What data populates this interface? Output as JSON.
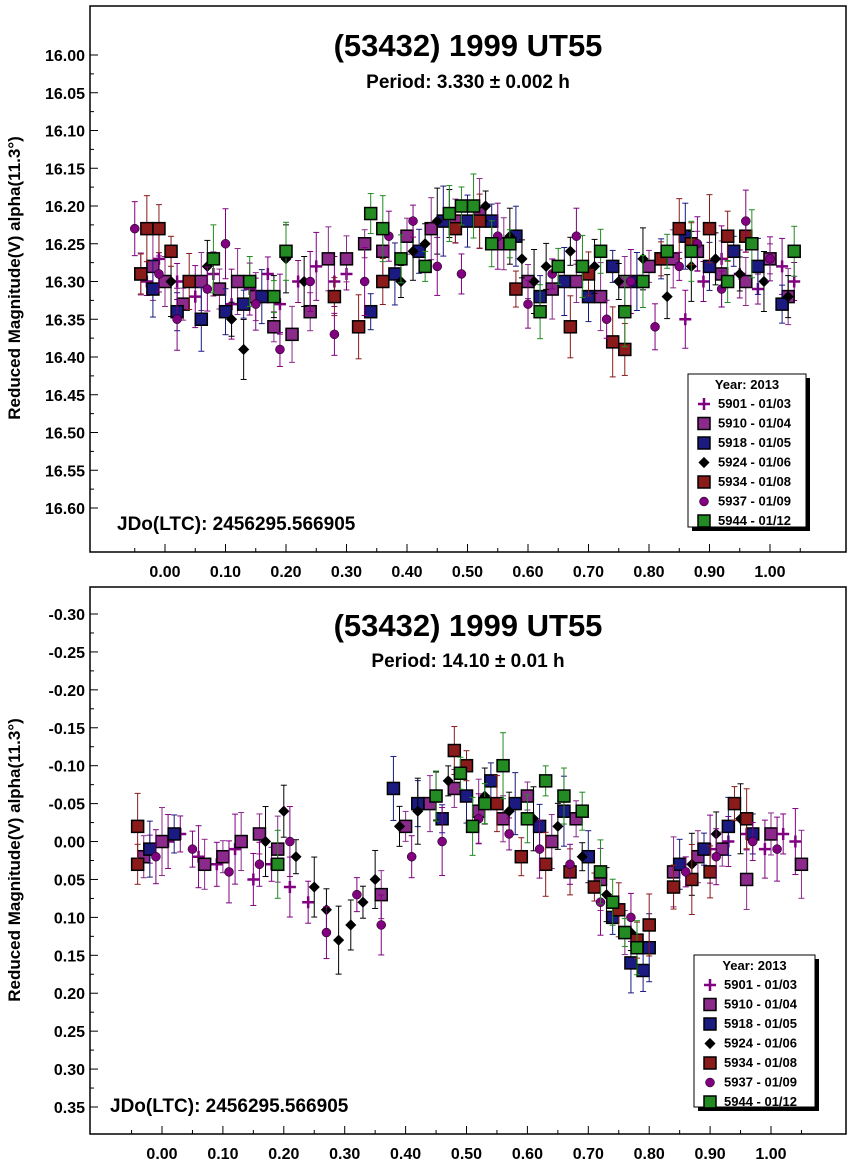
{
  "chart_data": [
    {
      "type": "scatter",
      "title": "(53432) 1999 UT55",
      "subtitle": "Period: 3.330 ± 0.002 h",
      "ylabel": "Reduced Magnitude(V) alpha(11.3°)",
      "xlabel": "",
      "annotation": "JDo(LTC): 2456295.566905",
      "xlim": [
        -0.06,
        1.06
      ],
      "ylim": [
        16.0,
        16.6
      ],
      "y_inverted": true,
      "x_ticks": [
        "0.00",
        "0.10",
        "0.20",
        "0.30",
        "0.40",
        "0.50",
        "0.60",
        "0.70",
        "0.80",
        "0.90",
        "1.00"
      ],
      "y_ticks": [
        "16.00",
        "16.05",
        "16.10",
        "16.15",
        "16.20",
        "16.25",
        "16.30",
        "16.35",
        "16.40",
        "16.45",
        "16.50",
        "16.55",
        "16.60"
      ],
      "legend_title": "Year: 2013",
      "legend_position": "bottom-right",
      "series": [
        {
          "name": "5901 - 01/03",
          "marker": "plus",
          "color": "#800080",
          "x": [
            -0.03,
            -0.01,
            0.02,
            0.05,
            0.08,
            0.11,
            0.14,
            0.17,
            0.19,
            0.22,
            0.25,
            0.28,
            0.3,
            0.86,
            0.89,
            0.92,
            0.95,
            0.98,
            1.02,
            1.04
          ],
          "y": [
            16.3,
            16.27,
            16.3,
            16.32,
            16.29,
            16.33,
            16.31,
            16.29,
            16.33,
            16.3,
            16.28,
            16.3,
            16.29,
            16.35,
            16.3,
            16.27,
            16.29,
            16.31,
            16.28,
            16.3
          ]
        },
        {
          "name": "5910 - 01/04",
          "marker": "square",
          "color": "#8b2a8b",
          "x": [
            -0.04,
            -0.02,
            0.0,
            0.03,
            0.06,
            0.09,
            0.12,
            0.15,
            0.18,
            0.21,
            0.24,
            0.27,
            0.3,
            0.33,
            0.36,
            0.4,
            0.44,
            0.48,
            0.52,
            0.56,
            0.6,
            0.64,
            0.68,
            0.72,
            0.76,
            0.8,
            0.84,
            0.88,
            0.92,
            0.96,
            1.0,
            1.03
          ],
          "y": [
            16.29,
            16.28,
            16.3,
            16.33,
            16.3,
            16.31,
            16.3,
            16.32,
            16.36,
            16.37,
            16.34,
            16.27,
            16.27,
            16.25,
            16.26,
            16.24,
            16.23,
            16.22,
            16.21,
            16.25,
            16.3,
            16.31,
            16.3,
            16.32,
            16.3,
            16.28,
            16.27,
            16.26,
            16.29,
            16.3,
            16.27,
            16.32
          ]
        },
        {
          "name": "5918 - 01/05",
          "marker": "square",
          "color": "#1a1a80",
          "x": [
            -0.02,
            0.02,
            0.06,
            0.1,
            0.13,
            0.16,
            0.34,
            0.38,
            0.42,
            0.46,
            0.5,
            0.54,
            0.58,
            0.62,
            0.66,
            0.7,
            0.74,
            0.78,
            0.82,
            0.86,
            0.9,
            0.94,
            0.98,
            1.02
          ],
          "y": [
            16.31,
            16.34,
            16.35,
            16.34,
            16.33,
            16.32,
            16.34,
            16.29,
            16.26,
            16.22,
            16.22,
            16.22,
            16.24,
            16.32,
            16.3,
            16.32,
            16.28,
            16.3,
            16.27,
            16.24,
            16.28,
            16.26,
            16.28,
            16.33
          ]
        },
        {
          "name": "5924 - 01/06",
          "marker": "diamond",
          "color": "#000000",
          "x": [
            0.01,
            0.07,
            0.11,
            0.13,
            0.18,
            0.2,
            0.23,
            0.39,
            0.41,
            0.43,
            0.45,
            0.47,
            0.53,
            0.57,
            0.59,
            0.61,
            0.63,
            0.67,
            0.71,
            0.75,
            0.79,
            0.83,
            0.87,
            0.91,
            0.95,
            0.99,
            1.03
          ],
          "y": [
            16.3,
            16.28,
            16.35,
            16.39,
            16.32,
            16.27,
            16.3,
            16.3,
            16.26,
            16.25,
            16.22,
            16.21,
            16.2,
            16.24,
            16.27,
            16.3,
            16.28,
            16.26,
            16.28,
            16.3,
            16.27,
            16.32,
            16.28,
            16.27,
            16.29,
            16.3,
            16.32
          ]
        },
        {
          "name": "5934 - 01/08",
          "marker": "square",
          "color": "#8b1a1a",
          "x": [
            -0.04,
            -0.03,
            -0.01,
            0.01,
            0.04,
            0.28,
            0.32,
            0.36,
            0.48,
            0.52,
            0.58,
            0.67,
            0.7,
            0.74,
            0.76,
            0.82,
            0.85,
            0.87,
            0.9,
            0.93,
            0.96
          ],
          "y": [
            16.29,
            16.23,
            16.23,
            16.26,
            16.3,
            16.32,
            16.36,
            16.3,
            16.23,
            16.22,
            16.31,
            16.36,
            16.29,
            16.38,
            16.39,
            16.27,
            16.23,
            16.25,
            16.23,
            16.24,
            16.24
          ]
        },
        {
          "name": "5937 - 01/09",
          "marker": "circle",
          "color": "#800080",
          "x": [
            -0.05,
            -0.01,
            0.02,
            0.07,
            0.1,
            0.15,
            0.19,
            0.24,
            0.28,
            0.33,
            0.37,
            0.41,
            0.45,
            0.49,
            0.55,
            0.6,
            0.64,
            0.68,
            0.73,
            0.77,
            0.81,
            0.85,
            0.88,
            0.92,
            0.96,
            1.0
          ],
          "y": [
            16.23,
            16.29,
            16.35,
            16.31,
            16.25,
            16.33,
            16.39,
            16.3,
            16.37,
            16.3,
            16.24,
            16.22,
            16.28,
            16.29,
            16.24,
            16.33,
            16.29,
            16.24,
            16.35,
            16.3,
            16.36,
            16.28,
            16.25,
            16.31,
            16.22,
            16.27
          ]
        },
        {
          "name": "5944 - 01/12",
          "marker": "square",
          "color": "#228b22",
          "x": [
            0.08,
            0.14,
            0.18,
            0.2,
            0.34,
            0.36,
            0.39,
            0.43,
            0.47,
            0.49,
            0.51,
            0.54,
            0.57,
            0.62,
            0.65,
            0.69,
            0.72,
            0.76,
            0.79,
            0.83,
            0.87,
            0.93,
            0.97,
            1.04
          ],
          "y": [
            16.27,
            16.3,
            16.32,
            16.26,
            16.21,
            16.23,
            16.27,
            16.28,
            16.21,
            16.2,
            16.2,
            16.25,
            16.25,
            16.34,
            16.28,
            16.28,
            16.26,
            16.34,
            16.3,
            16.26,
            16.26,
            16.3,
            16.25,
            16.26
          ]
        }
      ]
    },
    {
      "type": "scatter",
      "title": "(53432) 1999 UT55",
      "subtitle": "Period: 14.10 ± 0.01 h",
      "ylabel": "Reduced Magnitude(V) alpha(11.3°)",
      "xlabel": "",
      "annotation": "JDo(LTC): 2456295.566905",
      "xlim": [
        -0.06,
        1.06
      ],
      "ylim": [
        -0.3,
        0.35
      ],
      "y_inverted": true,
      "x_ticks": [
        "0.00",
        "0.10",
        "0.20",
        "0.30",
        "0.40",
        "0.50",
        "0.60",
        "0.70",
        "0.80",
        "0.90",
        "1.00"
      ],
      "y_ticks": [
        "-0.30",
        "-0.25",
        "-0.20",
        "-0.15",
        "-0.10",
        "-0.05",
        "0.00",
        "0.05",
        "0.10",
        "0.15",
        "0.20",
        "0.25",
        "0.30",
        "0.35"
      ],
      "legend_title": "Year: 2013",
      "legend_position": "bottom-right",
      "series": [
        {
          "name": "5901 - 01/03",
          "marker": "plus",
          "color": "#800080",
          "x": [
            -0.02,
            0.01,
            0.03,
            0.06,
            0.09,
            0.12,
            0.15,
            0.18,
            0.21,
            0.24,
            0.9,
            0.93,
            0.96,
            0.99,
            1.02,
            1.04
          ],
          "y": [
            0.01,
            0.0,
            -0.01,
            0.02,
            0.03,
            0.01,
            0.05,
            0.03,
            0.06,
            0.08,
            0.01,
            0.0,
            -0.01,
            0.01,
            -0.01,
            0.0
          ]
        },
        {
          "name": "5910 - 01/04",
          "marker": "square",
          "color": "#8b2a8b",
          "x": [
            -0.03,
            0.0,
            0.07,
            0.1,
            0.13,
            0.16,
            0.19,
            0.36,
            0.4,
            0.44,
            0.48,
            0.52,
            0.56,
            0.6,
            0.64,
            0.68,
            0.72,
            0.76,
            0.84,
            0.88,
            0.92,
            0.96,
            1.0,
            1.05
          ],
          "y": [
            0.02,
            0.0,
            0.03,
            0.02,
            0.0,
            -0.01,
            0.01,
            0.07,
            -0.02,
            -0.05,
            -0.07,
            -0.04,
            -0.03,
            -0.06,
            0.0,
            -0.03,
            0.05,
            0.12,
            0.04,
            0.02,
            0.01,
            0.05,
            -0.01,
            0.03
          ]
        },
        {
          "name": "5918 - 01/05",
          "marker": "square",
          "color": "#1a1a80",
          "x": [
            -0.02,
            0.02,
            0.38,
            0.42,
            0.46,
            0.5,
            0.54,
            0.58,
            0.62,
            0.66,
            0.7,
            0.74,
            0.77,
            0.79,
            0.8,
            0.85,
            0.89,
            0.93,
            0.97
          ],
          "y": [
            0.01,
            -0.01,
            -0.07,
            -0.05,
            -0.03,
            -0.06,
            -0.08,
            -0.05,
            -0.02,
            -0.04,
            0.02,
            0.1,
            0.16,
            0.17,
            0.14,
            0.03,
            0.01,
            -0.02,
            -0.01
          ]
        },
        {
          "name": "5924 - 01/06",
          "marker": "diamond",
          "color": "#000000",
          "x": [
            0.17,
            0.2,
            0.22,
            0.25,
            0.27,
            0.29,
            0.31,
            0.33,
            0.35,
            0.39,
            0.42,
            0.45,
            0.47,
            0.53,
            0.57,
            0.61,
            0.65,
            0.69,
            0.73,
            0.77,
            0.87,
            0.91,
            0.95
          ],
          "y": [
            0.0,
            -0.04,
            0.02,
            0.06,
            0.09,
            0.13,
            0.11,
            0.08,
            0.05,
            -0.02,
            -0.04,
            -0.06,
            -0.08,
            -0.06,
            -0.04,
            -0.03,
            -0.02,
            0.02,
            0.07,
            0.12,
            0.03,
            -0.01,
            -0.03
          ]
        },
        {
          "name": "5934 - 01/08",
          "marker": "square",
          "color": "#8b1a1a",
          "x": [
            -0.04,
            -0.04,
            0.48,
            0.5,
            0.55,
            0.59,
            0.63,
            0.67,
            0.71,
            0.75,
            0.78,
            0.8,
            0.84,
            0.87,
            0.9,
            0.94,
            0.96
          ],
          "y": [
            0.03,
            -0.02,
            -0.12,
            -0.1,
            -0.05,
            0.02,
            0.03,
            0.04,
            0.06,
            0.09,
            0.13,
            0.11,
            0.06,
            0.05,
            0.04,
            -0.05,
            -0.03
          ]
        },
        {
          "name": "5937 - 01/09",
          "marker": "circle",
          "color": "#800080",
          "x": [
            -0.01,
            0.05,
            0.11,
            0.16,
            0.21,
            0.27,
            0.32,
            0.36,
            0.41,
            0.46,
            0.52,
            0.57,
            0.62,
            0.67,
            0.72,
            0.77,
            0.86,
            0.91,
            0.97,
            1.01
          ],
          "y": [
            0.02,
            0.01,
            0.04,
            0.03,
            0.0,
            0.12,
            0.07,
            0.11,
            0.02,
            0.0,
            -0.03,
            -0.01,
            0.01,
            0.03,
            0.08,
            0.1,
            0.04,
            0.02,
            0.0,
            0.01
          ]
        },
        {
          "name": "5944 - 01/12",
          "marker": "square",
          "color": "#228b22",
          "x": [
            0.19,
            0.45,
            0.49,
            0.51,
            0.53,
            0.56,
            0.6,
            0.63,
            0.66,
            0.69,
            0.72,
            0.74,
            0.76,
            0.78
          ],
          "y": [
            0.03,
            -0.06,
            -0.09,
            -0.02,
            -0.05,
            -0.1,
            -0.03,
            -0.08,
            -0.06,
            -0.04,
            0.04,
            0.08,
            0.12,
            0.14
          ]
        }
      ]
    }
  ]
}
